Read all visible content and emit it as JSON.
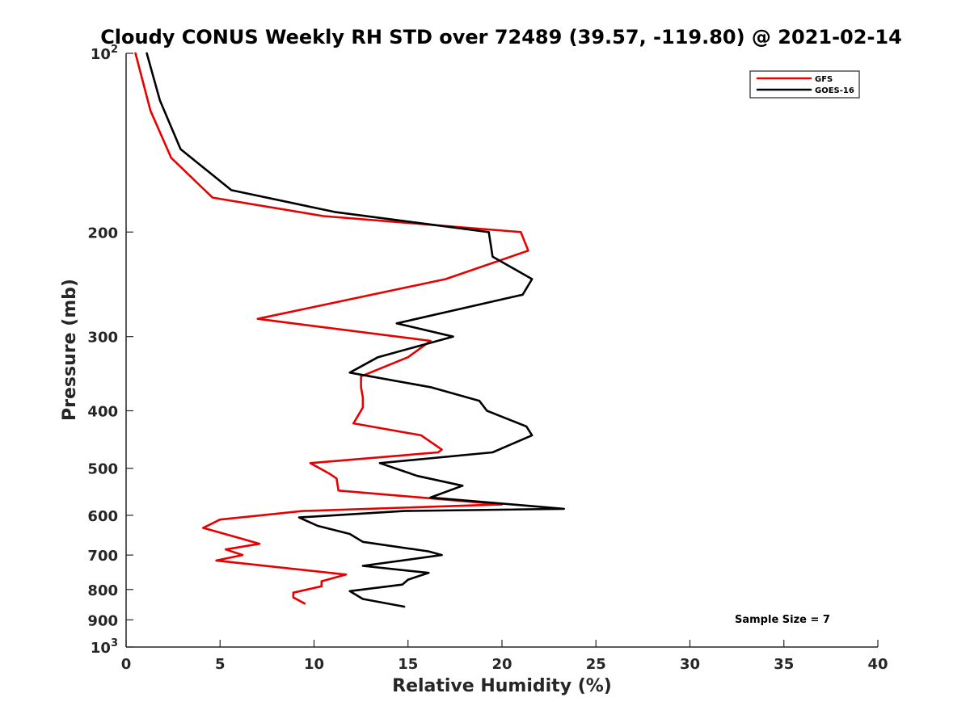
{
  "chart_data": {
    "type": "line",
    "title": "Cloudy CONUS Weekly RH STD over 72489 (39.57, -119.80) @ 2021-02-14",
    "xlabel": "Relative Humidity (%)",
    "ylabel": "Pressure (mb)",
    "xlim": [
      0,
      40
    ],
    "ylim": [
      100,
      1000
    ],
    "y_scale": "log",
    "y_reversed": true,
    "grid": false,
    "legend_position": "top-right",
    "x_ticks": [
      "0",
      "5",
      "10",
      "15",
      "20",
      "25",
      "30",
      "35",
      "40"
    ],
    "x_tick_values": [
      0,
      5,
      10,
      15,
      20,
      25,
      30,
      35,
      40
    ],
    "y_ticks": [
      {
        "value": 100,
        "base": "10",
        "exp": "2"
      },
      {
        "value": 200,
        "label": "200"
      },
      {
        "value": 300,
        "label": "300"
      },
      {
        "value": 400,
        "label": "400"
      },
      {
        "value": 500,
        "label": "500"
      },
      {
        "value": 600,
        "label": "600"
      },
      {
        "value": 700,
        "label": "700"
      },
      {
        "value": 800,
        "label": "800"
      },
      {
        "value": 900,
        "label": "900"
      },
      {
        "value": 1000,
        "base": "10",
        "exp": "3"
      }
    ],
    "annotation": "Sample Size = 7",
    "series": [
      {
        "name": "GFS",
        "color": "#e60000",
        "points": [
          [
            0.5,
            100
          ],
          [
            1.3,
            125
          ],
          [
            2.4,
            150
          ],
          [
            4.6,
            175
          ],
          [
            10.5,
            188
          ],
          [
            21.0,
            200
          ],
          [
            21.4,
            215
          ],
          [
            17.0,
            240
          ],
          [
            7.0,
            280
          ],
          [
            16.2,
            305
          ],
          [
            15.0,
            325
          ],
          [
            12.5,
            350
          ],
          [
            12.5,
            365
          ],
          [
            12.6,
            380
          ],
          [
            12.6,
            395
          ],
          [
            12.1,
            420
          ],
          [
            15.7,
            440
          ],
          [
            16.8,
            465
          ],
          [
            16.6,
            470
          ],
          [
            9.8,
            490
          ],
          [
            10.8,
            510
          ],
          [
            11.2,
            520
          ],
          [
            11.3,
            545
          ],
          [
            20.0,
            575
          ],
          [
            9.4,
            590
          ],
          [
            5.0,
            610
          ],
          [
            4.1,
            630
          ],
          [
            6.0,
            655
          ],
          [
            7.1,
            670
          ],
          [
            5.3,
            685
          ],
          [
            6.2,
            700
          ],
          [
            4.8,
            715
          ],
          [
            11.7,
            755
          ],
          [
            10.4,
            775
          ],
          [
            10.4,
            790
          ],
          [
            8.9,
            810
          ],
          [
            8.9,
            825
          ],
          [
            9.5,
            845
          ]
        ]
      },
      {
        "name": "GOES-16",
        "color": "#000000",
        "points": [
          [
            1.1,
            100
          ],
          [
            1.8,
            120
          ],
          [
            2.9,
            145
          ],
          [
            5.6,
            170
          ],
          [
            11.1,
            185
          ],
          [
            19.3,
            200
          ],
          [
            19.5,
            220
          ],
          [
            21.6,
            240
          ],
          [
            21.1,
            255
          ],
          [
            14.4,
            285
          ],
          [
            17.4,
            300
          ],
          [
            13.4,
            325
          ],
          [
            11.9,
            345
          ],
          [
            16.2,
            365
          ],
          [
            18.8,
            385
          ],
          [
            19.2,
            400
          ],
          [
            21.3,
            425
          ],
          [
            21.6,
            440
          ],
          [
            19.5,
            470
          ],
          [
            13.5,
            490
          ],
          [
            15.5,
            515
          ],
          [
            17.9,
            535
          ],
          [
            16.2,
            560
          ],
          [
            23.3,
            585
          ],
          [
            14.8,
            590
          ],
          [
            9.2,
            605
          ],
          [
            10.2,
            625
          ],
          [
            11.9,
            645
          ],
          [
            12.6,
            665
          ],
          [
            16.1,
            690
          ],
          [
            16.8,
            700
          ],
          [
            12.6,
            730
          ],
          [
            16.1,
            750
          ],
          [
            15.0,
            770
          ],
          [
            14.7,
            785
          ],
          [
            11.9,
            805
          ],
          [
            12.6,
            830
          ],
          [
            14.8,
            855
          ]
        ]
      }
    ]
  }
}
